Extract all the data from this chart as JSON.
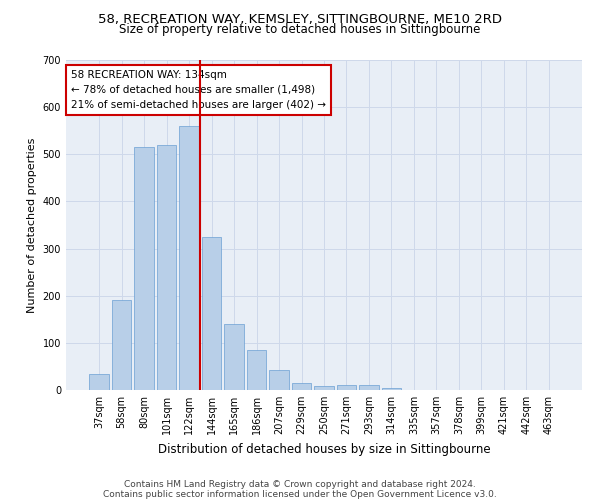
{
  "title1": "58, RECREATION WAY, KEMSLEY, SITTINGBOURNE, ME10 2RD",
  "title2": "Size of property relative to detached houses in Sittingbourne",
  "xlabel": "Distribution of detached houses by size in Sittingbourne",
  "ylabel": "Number of detached properties",
  "categories": [
    "37sqm",
    "58sqm",
    "80sqm",
    "101sqm",
    "122sqm",
    "144sqm",
    "165sqm",
    "186sqm",
    "207sqm",
    "229sqm",
    "250sqm",
    "271sqm",
    "293sqm",
    "314sqm",
    "335sqm",
    "357sqm",
    "378sqm",
    "399sqm",
    "421sqm",
    "442sqm",
    "463sqm"
  ],
  "values": [
    33,
    190,
    515,
    520,
    560,
    325,
    140,
    85,
    43,
    14,
    9,
    10,
    10,
    5,
    0,
    0,
    0,
    0,
    0,
    0,
    0
  ],
  "bar_color": "#b8cfe8",
  "bar_edge_color": "#6b9fd4",
  "vline_color": "#cc0000",
  "vline_x": 4.5,
  "annotation_text": "58 RECREATION WAY: 134sqm\n← 78% of detached houses are smaller (1,498)\n21% of semi-detached houses are larger (402) →",
  "annotation_box_color": "#ffffff",
  "annotation_box_edge_color": "#cc0000",
  "ylim": [
    0,
    700
  ],
  "yticks": [
    0,
    100,
    200,
    300,
    400,
    500,
    600,
    700
  ],
  "grid_color": "#ced8ea",
  "background_color": "#e8eef6",
  "footer": "Contains HM Land Registry data © Crown copyright and database right 2024.\nContains public sector information licensed under the Open Government Licence v3.0.",
  "title1_fontsize": 9.5,
  "title2_fontsize": 8.5,
  "xlabel_fontsize": 8.5,
  "ylabel_fontsize": 8,
  "tick_fontsize": 7,
  "annotation_fontsize": 7.5,
  "footer_fontsize": 6.5
}
